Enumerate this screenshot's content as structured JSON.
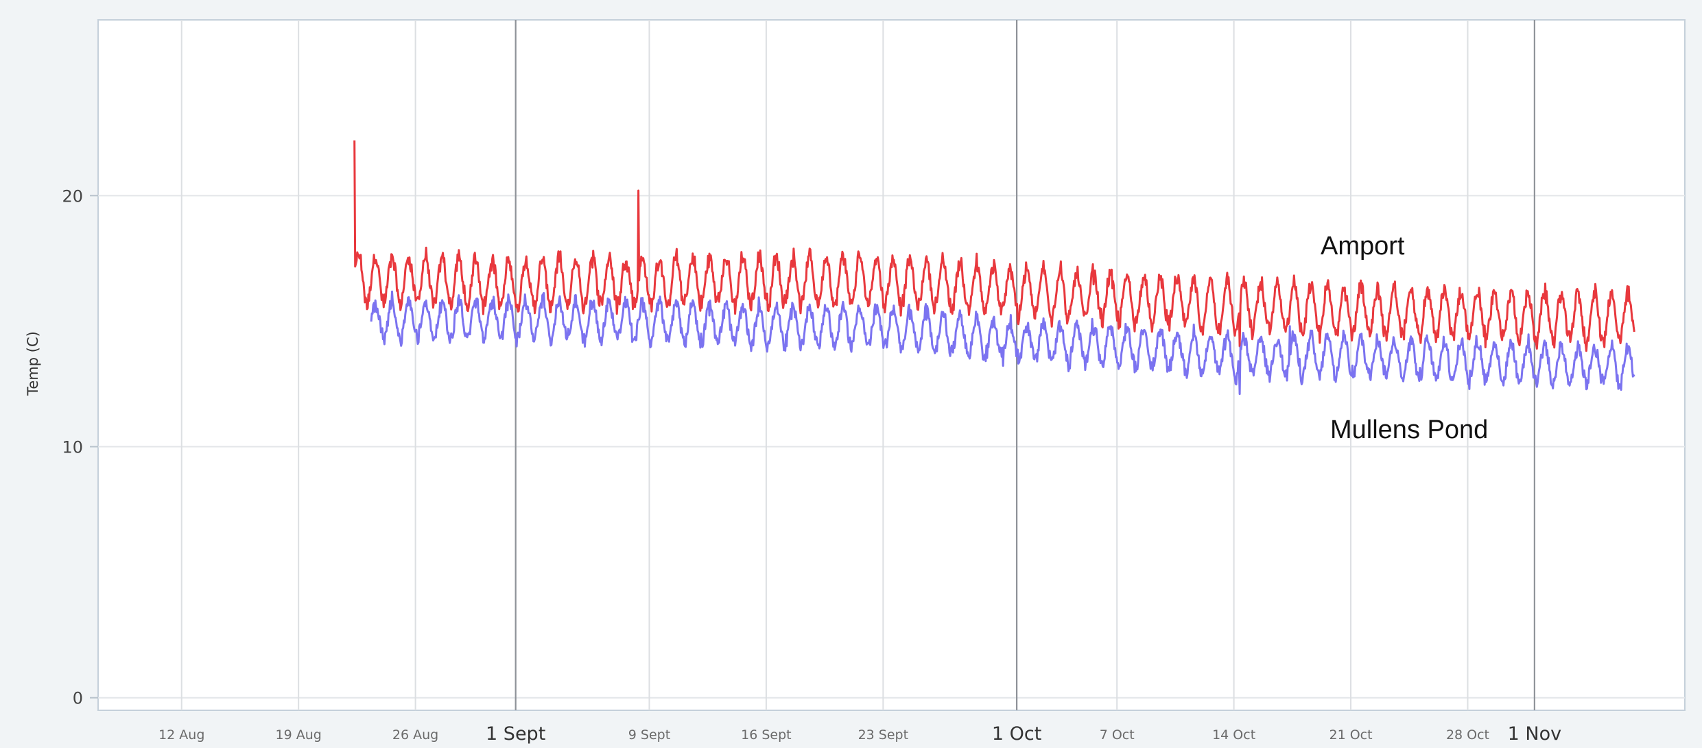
{
  "chart_data": {
    "type": "line",
    "title": "",
    "xlabel": "",
    "ylabel": "Temp (C)",
    "x_axis_type": "date",
    "xlim": [
      "2019-08-07",
      "2019-11-10"
    ],
    "ylim": [
      -0.5,
      27
    ],
    "y_ticks": [
      {
        "value": 0,
        "label": "0"
      },
      {
        "value": 10,
        "label": "10"
      },
      {
        "value": 20,
        "label": "20"
      }
    ],
    "x_ticks": [
      {
        "date": "2019-08-12",
        "label": "12 Aug",
        "major": false
      },
      {
        "date": "2019-08-19",
        "label": "19 Aug",
        "major": false
      },
      {
        "date": "2019-08-26",
        "label": "26 Aug",
        "major": false
      },
      {
        "date": "2019-09-01",
        "label": "1 Sept",
        "major": true
      },
      {
        "date": "2019-09-09",
        "label": "9 Sept",
        "major": false
      },
      {
        "date": "2019-09-16",
        "label": "16 Sept",
        "major": false
      },
      {
        "date": "2019-09-23",
        "label": "23 Sept",
        "major": false
      },
      {
        "date": "2019-10-01",
        "label": "1 Oct",
        "major": true
      },
      {
        "date": "2019-10-07",
        "label": "7 Oct",
        "major": false
      },
      {
        "date": "2019-10-14",
        "label": "14 Oct",
        "major": false
      },
      {
        "date": "2019-10-21",
        "label": "21 Oct",
        "major": false
      },
      {
        "date": "2019-10-28",
        "label": "28 Oct",
        "major": false
      },
      {
        "date": "2019-11-01",
        "label": "1 Nov",
        "major": true
      }
    ],
    "grid": true,
    "legend": "none",
    "series": [
      {
        "name": "Amport",
        "color": "#e8383d",
        "start": "2019-08-22",
        "end": "2019-11-07",
        "trend": [
          {
            "date": "2019-08-22",
            "base": 16.7
          },
          {
            "date": "2019-09-01",
            "base": 16.5
          },
          {
            "date": "2019-09-09",
            "base": 16.6
          },
          {
            "date": "2019-09-23",
            "base": 16.6
          },
          {
            "date": "2019-10-01",
            "base": 16.2
          },
          {
            "date": "2019-10-14",
            "base": 15.6
          },
          {
            "date": "2019-10-21",
            "base": 15.4
          },
          {
            "date": "2019-11-07",
            "base": 15.1
          }
        ],
        "daily_amplitude": 1.6,
        "spikes": [
          {
            "date": "2019-08-22",
            "value": 22.2
          },
          {
            "date": "2019-09-08",
            "value": 20.2
          },
          {
            "date": "2019-10-14",
            "value": 14.0
          }
        ]
      },
      {
        "name": "Mullens Pond",
        "color": "#7b73f0",
        "start": "2019-08-23",
        "end": "2019-11-07",
        "trend": [
          {
            "date": "2019-08-23",
            "base": 15.0
          },
          {
            "date": "2019-09-01",
            "base": 15.1
          },
          {
            "date": "2019-09-09",
            "base": 15.0
          },
          {
            "date": "2019-09-16",
            "base": 14.8
          },
          {
            "date": "2019-09-23",
            "base": 14.8
          },
          {
            "date": "2019-10-01",
            "base": 14.2
          },
          {
            "date": "2019-10-07",
            "base": 14.0
          },
          {
            "date": "2019-10-14",
            "base": 13.6
          },
          {
            "date": "2019-10-21",
            "base": 13.6
          },
          {
            "date": "2019-11-07",
            "base": 13.2
          }
        ],
        "daily_amplitude": 1.3,
        "spikes": [
          {
            "date": "2019-10-14",
            "value": 12.1
          },
          {
            "date": "2019-10-17",
            "value": 14.8
          }
        ]
      }
    ]
  }
}
